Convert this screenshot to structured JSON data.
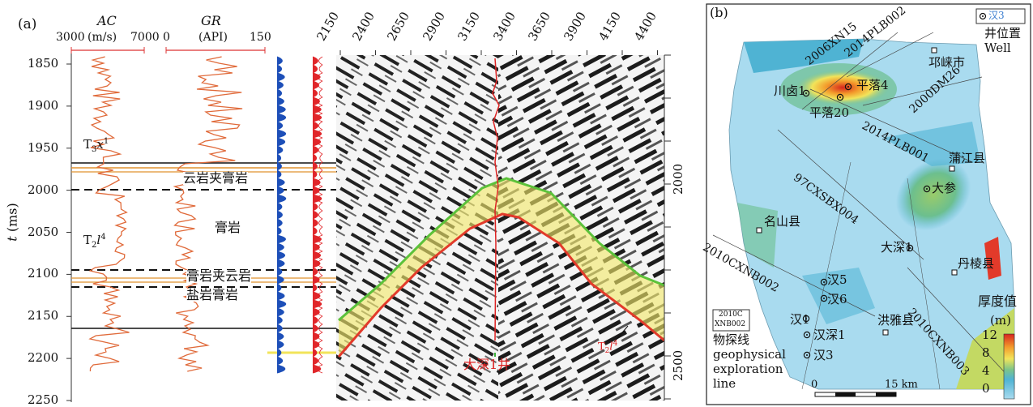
{
  "panel_a": {
    "label": "(a)",
    "ac": {
      "name": "AC",
      "unit": "(m/s)",
      "min": "3000",
      "max": "7000"
    },
    "gr": {
      "name": "GR",
      "unit": "(API)",
      "min": "0",
      "max": "150"
    },
    "t_axis": {
      "label": "t",
      "unit": "(ms)",
      "ticks": [
        "1850",
        "1900",
        "1950",
        "2000",
        "2050",
        "2100",
        "2150",
        "2200",
        "2250"
      ]
    },
    "cdp_ticks": [
      "2150",
      "2400",
      "2650",
      "2900",
      "3150",
      "3400",
      "3650",
      "3900",
      "4150",
      "4400"
    ],
    "right_ticks": [
      "2000",
      "2500"
    ],
    "formations": {
      "t3x": "T",
      "t3x_sub": "3",
      "t3x_x": "x",
      "t3x_sup": "1",
      "t2l": "T",
      "t2l_sub": "2",
      "t2l_l": "l",
      "t2l_sup": "4",
      "t2l_right": "T",
      "t2l_right_sub": "2",
      "t2l_right_l": "l",
      "t2l_right_sup": "4"
    },
    "lithology": [
      "云岩夹膏岩",
      "膏岩",
      "膏岩夹云岩",
      "盐岩膏岩"
    ],
    "well_label": "大深1井"
  },
  "panel_b": {
    "label": "(b)",
    "legend_well_symbol": "汉3",
    "legend_well_cn": "井位置",
    "legend_well_en": "Well",
    "legend_line_code_1": "2010C",
    "legend_line_code_2": "XNB002",
    "legend_line_cn": "物探线",
    "legend_line_en_1": "geophysical",
    "legend_line_en_2": "exploration",
    "legend_line_en_3": "line",
    "thickness_title": "厚度值",
    "thickness_unit": "(m)",
    "colorbar_ticks": [
      "12",
      "8",
      "4",
      "0"
    ],
    "scale_0": "0",
    "scale_15": "15 km",
    "wells": [
      "川卤1",
      "平落4",
      "平落20",
      "大参",
      "大深1",
      "汉5",
      "汉6",
      "汉1",
      "汉深1",
      "汉3"
    ],
    "counties": [
      "邛崃市",
      "蒲江县",
      "名山县",
      "丹棱县",
      "洪雅县"
    ],
    "survey_lines": [
      "2006XN15",
      "2014PLB002",
      "2000DM26",
      "2014PLB001",
      "97CXSBX004",
      "2010CXNB002",
      "2010CXNB003"
    ]
  }
}
